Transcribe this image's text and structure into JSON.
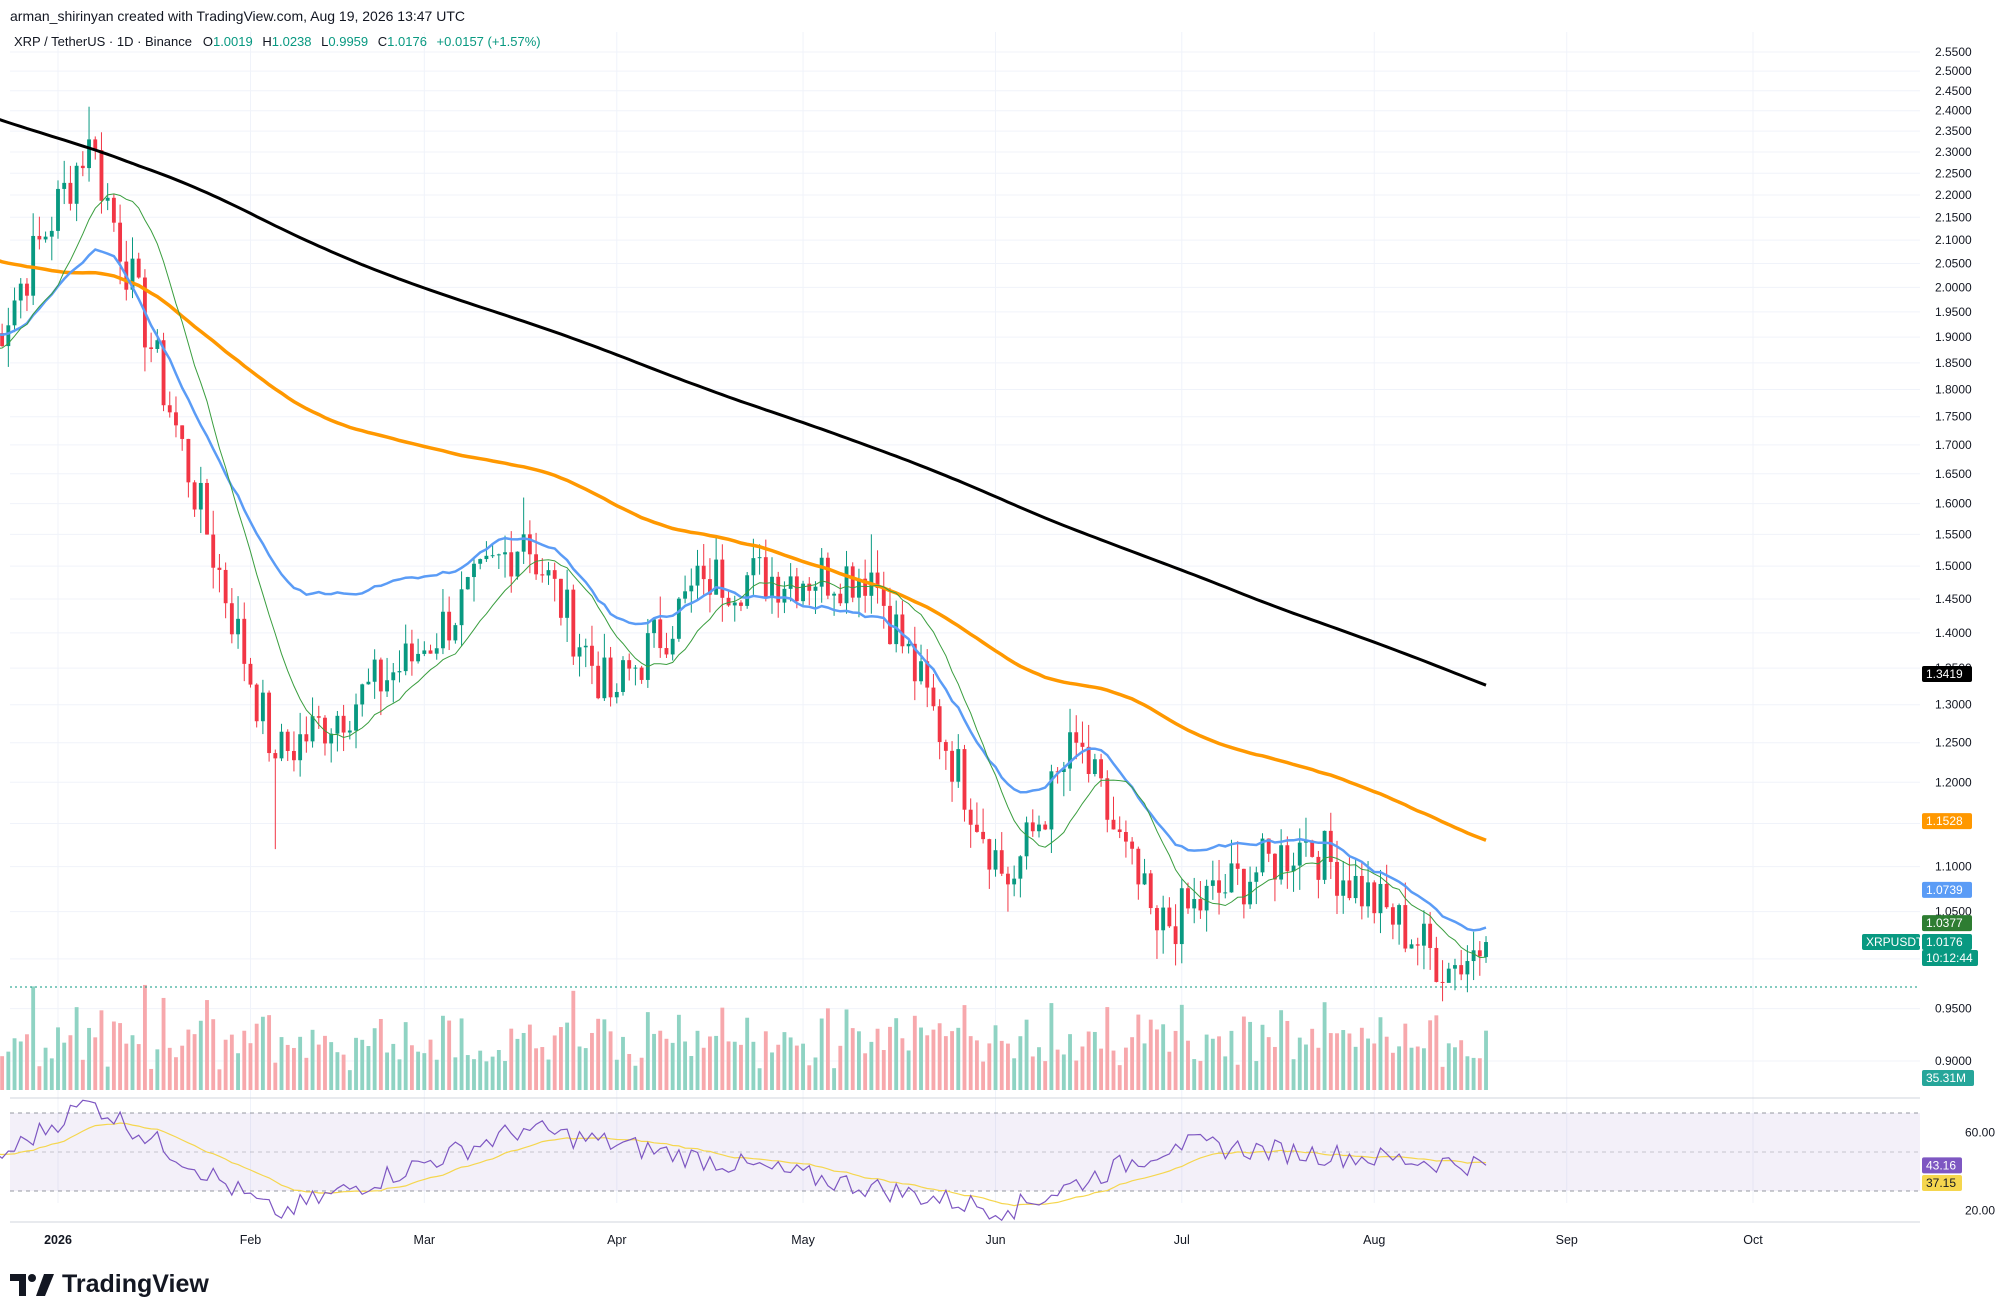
{
  "header": {
    "author_line": "arman_shirinyan created with TradingView.com, Aug 19, 2026 13:47 UTC",
    "symbol_line": "XRP / TetherUS · 1D · Binance",
    "o_label": "O",
    "o_value": "1.0019",
    "h_label": "H",
    "h_value": "1.0238",
    "l_label": "L",
    "l_value": "0.9959",
    "c_label": "C",
    "c_value": "1.0176",
    "change": "+0.0157 (+1.57%)"
  },
  "branding": {
    "logo_icon": "tradingview-logo-icon",
    "name": "TradingView"
  },
  "chart_data": [
    {
      "type": "candlestick",
      "title": "XRP / TetherUS · 1D · Binance",
      "price_axis_ticks": [
        "2.5500",
        "2.5000",
        "2.4500",
        "2.4000",
        "2.3500",
        "2.3000",
        "2.2500",
        "2.2000",
        "2.1500",
        "2.1000",
        "2.0500",
        "2.0000",
        "1.9500",
        "1.9000",
        "1.8500",
        "1.8000",
        "1.7500",
        "1.7000",
        "1.6500",
        "1.6000",
        "1.5500",
        "1.5000",
        "1.4500",
        "1.4000",
        "1.3500",
        "1.3000",
        "1.2500",
        "1.2000",
        "1.1500",
        "1.1000",
        "1.0500",
        "1.0000",
        "0.9500",
        "0.9000"
      ],
      "price_axis_scale": "log",
      "x_axis_ticks": [
        "2026",
        "Feb",
        "Mar",
        "Apr",
        "May",
        "Jun",
        "Jul",
        "Aug",
        "Sep",
        "Oct"
      ],
      "key_points": [
        {
          "date": "2025-12-20",
          "close": 1.85
        },
        {
          "date": "2026-01-06",
          "high": 2.41,
          "close": 2.33
        },
        {
          "date": "2026-02-05",
          "low": 1.12,
          "close": 1.23
        },
        {
          "date": "2026-02-28",
          "close": 1.37
        },
        {
          "date": "2026-03-17",
          "high": 1.61,
          "close": 1.55
        },
        {
          "date": "2026-03-31",
          "close": 1.31
        },
        {
          "date": "2026-04-15",
          "close": 1.48
        },
        {
          "date": "2026-05-12",
          "high": 1.55,
          "close": 1.49
        },
        {
          "date": "2026-06-03",
          "low": 1.05,
          "close": 1.08
        },
        {
          "date": "2026-06-14",
          "close": 1.25
        },
        {
          "date": "2026-06-27",
          "low": 1.0,
          "close": 1.03
        },
        {
          "date": "2026-07-21",
          "close": 1.13
        },
        {
          "date": "2026-08-13",
          "low": 0.98,
          "close": 0.99
        },
        {
          "date": "2026-08-19",
          "open": 1.0019,
          "high": 1.0238,
          "low": 0.9959,
          "close": 1.0176
        }
      ],
      "moving_averages": [
        {
          "color": "#000000",
          "last_value": "1.3419"
        },
        {
          "color": "#ff9800",
          "last_value": "1.1528"
        },
        {
          "color": "#5b9cf6",
          "last_value": "1.0739"
        },
        {
          "color": "#3a9e3f",
          "last_value": "1.0377"
        }
      ],
      "last_price": {
        "symbol": "XRPUSDT",
        "value": "1.0176",
        "countdown": "10:12:44"
      },
      "volume": {
        "last_value": "35.31M"
      },
      "colors": {
        "up": "#089981",
        "down": "#f23645",
        "volume_up": "#8fd3c3",
        "volume_down": "#f7a8ac"
      }
    },
    {
      "type": "line",
      "indicator": "RSI",
      "y_axis_ticks": [
        "60.00",
        "20.00"
      ],
      "band": [
        30,
        70
      ],
      "series": [
        {
          "color": "#7e57c2",
          "last_value": "43.16"
        },
        {
          "color": "#f5d64e",
          "last_value": "37.15"
        }
      ],
      "key_points": [
        {
          "date": "2026-01-06",
          "rsi": 76
        },
        {
          "date": "2026-02-05",
          "rsi": 18
        },
        {
          "date": "2026-03-17",
          "rsi": 62
        },
        {
          "date": "2026-06-03",
          "rsi": 20
        },
        {
          "date": "2026-06-30",
          "rsi": 54
        },
        {
          "date": "2026-08-19",
          "rsi": 43.16
        }
      ]
    }
  ]
}
